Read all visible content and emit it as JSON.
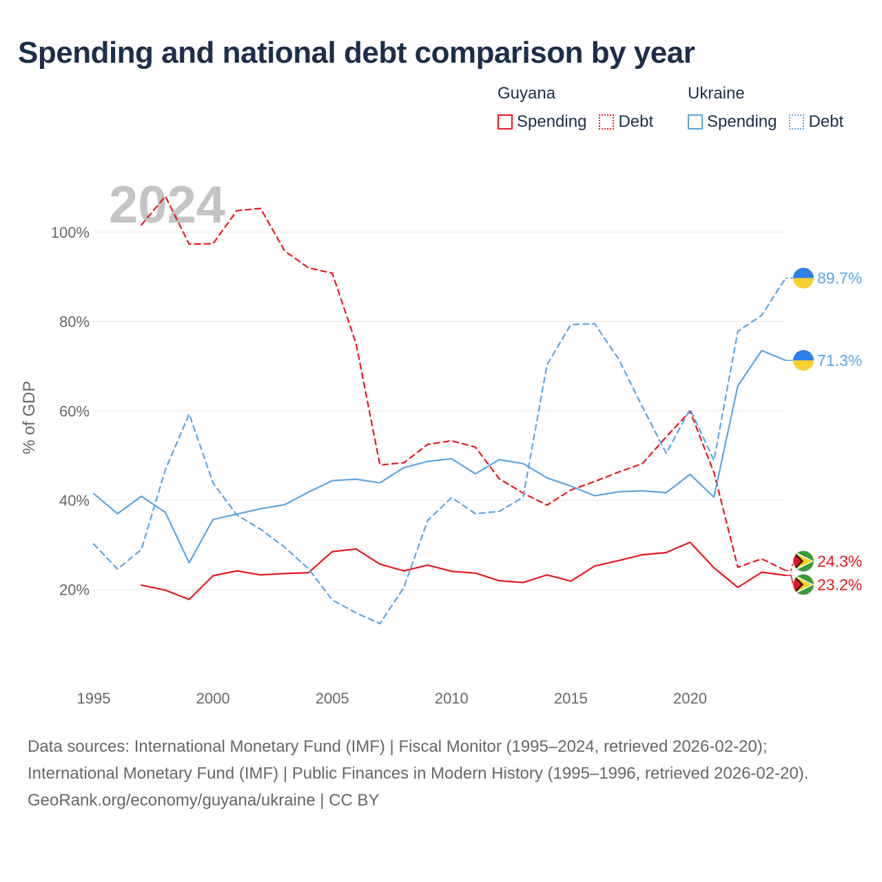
{
  "title": "Spending and national debt comparison by year",
  "legend": {
    "groups": [
      {
        "name": "Guyana",
        "color": "#e8131b",
        "items": [
          "Spending",
          "Debt"
        ]
      },
      {
        "name": "Ukraine",
        "color": "#5aa3e2",
        "items": [
          "Spending",
          "Debt"
        ]
      }
    ]
  },
  "year_watermark": "2024",
  "chart_data": {
    "type": "line",
    "ylabel": "% of GDP",
    "xlabel": "",
    "xlim": [
      1995,
      2024
    ],
    "ylim": [
      3,
      112
    ],
    "x_ticks": [
      "1995",
      "2000",
      "2005",
      "2010",
      "2015",
      "2020"
    ],
    "y_ticks": [
      "20%",
      "40%",
      "60%",
      "80%",
      "100%"
    ],
    "series": [
      {
        "name": "Guyana Spending",
        "country": "Guyana",
        "metric": "Spending",
        "style": "solid",
        "color": "#e8131b",
        "flag": "guyana",
        "end_label": "23.2%",
        "x": [
          1997,
          1998,
          1999,
          2000,
          2001,
          2002,
          2003,
          2004,
          2005,
          2006,
          2007,
          2008,
          2009,
          2010,
          2011,
          2012,
          2013,
          2014,
          2015,
          2016,
          2017,
          2018,
          2019,
          2020,
          2021,
          2022,
          2023,
          2024
        ],
        "values": [
          21.0,
          19.9,
          17.8,
          23.1,
          24.2,
          23.3,
          23.6,
          23.8,
          28.5,
          29.1,
          25.7,
          24.2,
          25.5,
          24.1,
          23.7,
          22.0,
          21.6,
          23.3,
          21.9,
          25.3,
          26.5,
          27.8,
          28.3,
          30.6,
          24.9,
          20.5,
          23.9,
          23.2
        ]
      },
      {
        "name": "Guyana Debt",
        "country": "Guyana",
        "metric": "Debt",
        "style": "dashed",
        "color": "#e8131b",
        "flag": "guyana",
        "end_label": "24.3%",
        "x": [
          1997,
          1998,
          1999,
          2000,
          2001,
          2002,
          2003,
          2004,
          2005,
          2006,
          2007,
          2008,
          2009,
          2010,
          2011,
          2012,
          2013,
          2014,
          2015,
          2016,
          2017,
          2018,
          2019,
          2020,
          2021,
          2022,
          2023,
          2024
        ],
        "values": [
          101.6,
          108.0,
          97.3,
          97.4,
          104.8,
          105.3,
          95.8,
          92.0,
          90.8,
          75.0,
          47.9,
          48.4,
          52.5,
          53.3,
          51.9,
          44.8,
          41.6,
          38.9,
          42.3,
          44.2,
          46.3,
          48.2,
          54.2,
          59.9,
          46.2,
          25.0,
          26.9,
          24.3
        ]
      },
      {
        "name": "Ukraine Spending",
        "country": "Ukraine",
        "metric": "Spending",
        "style": "solid",
        "color": "#5aa3e2",
        "flag": "ukraine",
        "end_label": "71.3%",
        "x": [
          1995,
          1996,
          1997,
          1998,
          1999,
          2000,
          2001,
          2002,
          2003,
          2004,
          2005,
          2006,
          2007,
          2008,
          2009,
          2010,
          2011,
          2012,
          2013,
          2014,
          2015,
          2016,
          2017,
          2018,
          2019,
          2020,
          2021,
          2022,
          2023,
          2024
        ],
        "values": [
          41.5,
          37.0,
          40.9,
          37.3,
          26.0,
          35.7,
          36.9,
          38.1,
          39.0,
          41.8,
          44.4,
          44.7,
          43.9,
          47.3,
          48.7,
          49.3,
          45.9,
          49.1,
          48.2,
          45.0,
          43.2,
          41.0,
          41.9,
          42.1,
          41.7,
          45.8,
          40.7,
          65.6,
          73.5,
          71.3
        ]
      },
      {
        "name": "Ukraine Debt",
        "country": "Ukraine",
        "metric": "Debt",
        "style": "dashed",
        "color": "#5aa3e2",
        "flag": "ukraine",
        "end_label": "89.7%",
        "x": [
          1995,
          1996,
          1997,
          1998,
          1999,
          2000,
          2001,
          2002,
          2003,
          2004,
          2005,
          2006,
          2007,
          2008,
          2009,
          2010,
          2011,
          2012,
          2013,
          2014,
          2015,
          2016,
          2017,
          2018,
          2019,
          2020,
          2021,
          2022,
          2023,
          2024
        ],
        "values": [
          30.2,
          24.6,
          29.0,
          46.8,
          59.3,
          43.9,
          36.7,
          33.5,
          29.5,
          24.7,
          17.7,
          14.8,
          12.4,
          20.5,
          35.5,
          40.6,
          37.0,
          37.5,
          40.7,
          70.3,
          79.3,
          79.5,
          71.6,
          60.9,
          50.5,
          60.4,
          48.9,
          77.8,
          81.4,
          89.7
        ]
      }
    ]
  },
  "footer": {
    "sources": "Data sources: International Monetary Fund (IMF) | Fiscal Monitor (1995–2024, retrieved 2026-02-20); International Monetary Fund (IMF) | Public Finances in Modern History (1995–1996, retrieved 2026-02-20).",
    "credit": "GeoRank.org/economy/guyana/ukraine | CC BY"
  }
}
